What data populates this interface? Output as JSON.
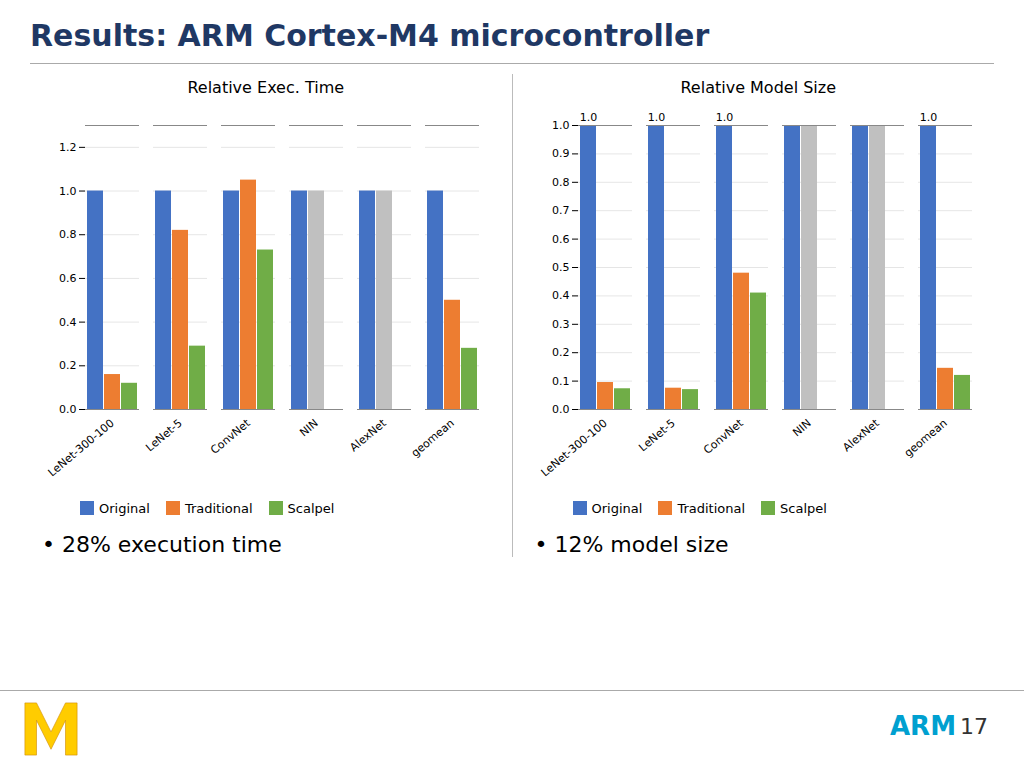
{
  "title": "Results: ARM Cortex-M4 microcontroller",
  "annotations": [
    "ARM",
    "17"
  ],
  "chart_data": [
    {
      "type": "bar",
      "title": "Relative Exec. Time",
      "categories": [
        "LeNet-300-100",
        "LeNet-5",
        "ConvNet",
        "NIN",
        "AlexNet",
        "geomean"
      ],
      "series": [
        {
          "name": "Original",
          "color": "#4472c4",
          "values": [
            1.0,
            1.0,
            1.0,
            1.0,
            1.0,
            1.0
          ]
        },
        {
          "name": "Traditional",
          "color": "#ed7d31",
          "values": [
            0.16,
            0.82,
            1.05,
            1.0,
            1.0,
            0.5
          ],
          "colors": [
            "#ed7d31",
            "#ed7d31",
            "#ed7d31",
            "#c0c0c0",
            "#c0c0c0",
            "#ed7d31"
          ]
        },
        {
          "name": "Scalpel",
          "color": "#70ad47",
          "values": [
            0.12,
            0.29,
            0.73,
            null,
            null,
            0.28
          ]
        }
      ],
      "ylim": [
        0,
        1.3
      ],
      "yticks": [
        {
          "value": 0,
          "label": "0.0"
        },
        0.2,
        0.4,
        0.6,
        0.8,
        {
          "value": 1.0,
          "label": "1.0"
        },
        1.2
      ],
      "grid": true,
      "legend": "lower left",
      "annotations": [
        "•  28% execution time"
      ]
    },
    {
      "type": "bar",
      "title": "Relative Model Size",
      "categories": [
        "LeNet-300-100",
        "LeNet-5",
        "ConvNet",
        "NIN",
        "AlexNet",
        "geomean"
      ],
      "series": [
        {
          "name": "Original",
          "color": "#4472c4",
          "values": [
            1.0,
            1.0,
            1.0,
            1.0,
            1.0,
            1.0
          ],
          "data_labels": true,
          "value_labels": [
            "1.0",
            "1.0",
            "1.0",
            null,
            null,
            "1.0"
          ]
        },
        {
          "name": "Traditional",
          "color": "#ed7d31",
          "values": [
            0.095,
            0.075,
            0.48,
            1.0,
            1.0,
            0.145
          ],
          "colors": [
            "#ed7d31",
            "#ed7d31",
            "#ed7d31",
            "#c0c0c0",
            "#c0c0c0",
            "#ed7d31"
          ]
        },
        {
          "name": "Scalpel",
          "color": "#70ad47",
          "values": [
            0.073,
            0.07,
            0.41,
            null,
            null,
            0.12
          ]
        }
      ],
      "ylim": [
        0,
        1.0
      ],
      "yticks": [
        {
          "value": 0,
          "label": "0.0"
        },
        0.1,
        0.2,
        0.3,
        0.4,
        0.5,
        0.6,
        0.7,
        0.8,
        0.9,
        {
          "value": 1.0,
          "label": "1.0"
        }
      ],
      "grid": true,
      "legend": "lower left",
      "annotations": [
        "•  12% model size"
      ]
    }
  ]
}
